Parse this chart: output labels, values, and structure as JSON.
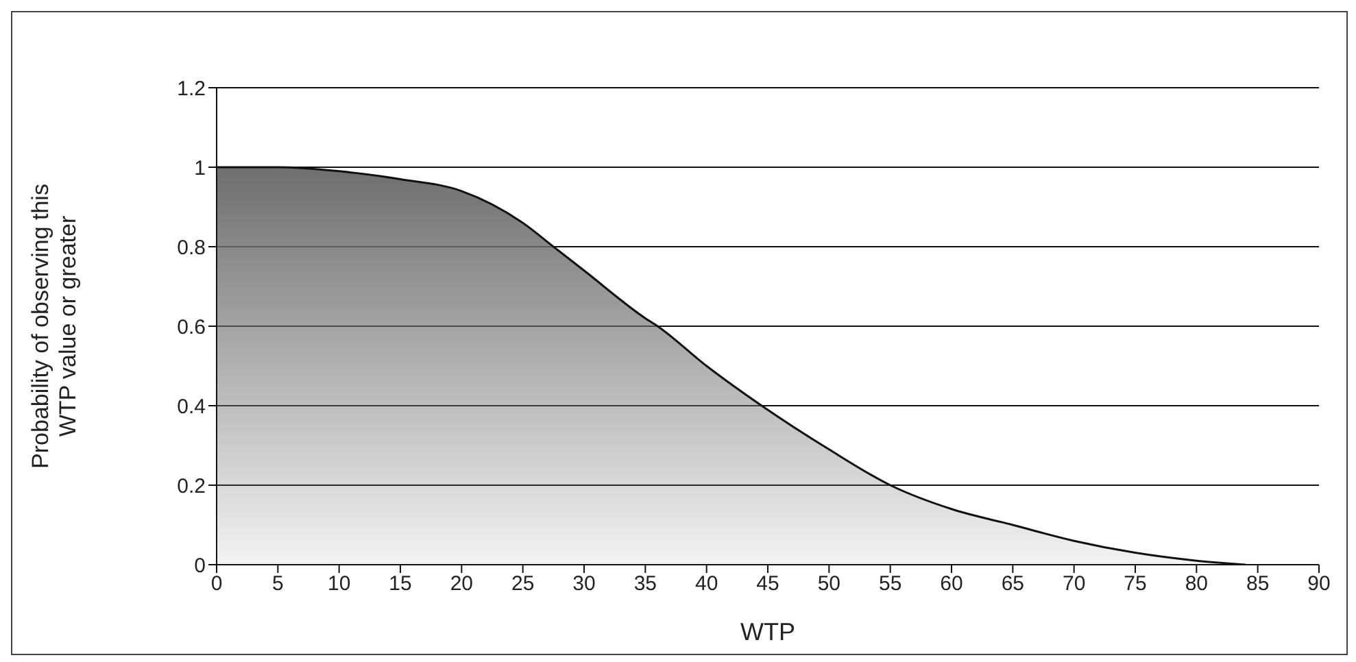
{
  "chart_data": {
    "type": "area",
    "xlabel": "WTP",
    "ylabel": "Probability of observing this WTP value or greater",
    "x": [
      0,
      5,
      10,
      15,
      20,
      25,
      27.5,
      30,
      35,
      36,
      40,
      44.5,
      50,
      55,
      60,
      65,
      70,
      75,
      80,
      84
    ],
    "series": [
      {
        "color": "#6e6e6e",
        "values": [
          1,
          1,
          0.99,
          0.97,
          0.94,
          0.86,
          0.8,
          0.74,
          0.62,
          0.6,
          0.5,
          0.4,
          0.29,
          0.2,
          0.14,
          0.1,
          0.06,
          0.03,
          0.01,
          0
        ]
      }
    ],
    "xlim": [
      0,
      90
    ],
    "xticks": [
      0,
      5,
      10,
      15,
      20,
      25,
      30,
      35,
      40,
      45,
      50,
      55,
      60,
      65,
      70,
      75,
      80,
      85,
      90
    ],
    "ylim": [
      0,
      1.2
    ],
    "yticks": [
      0,
      0.2,
      0.4,
      0.6,
      0.8,
      1,
      1.2
    ],
    "grid": "y",
    "legend": false
  }
}
